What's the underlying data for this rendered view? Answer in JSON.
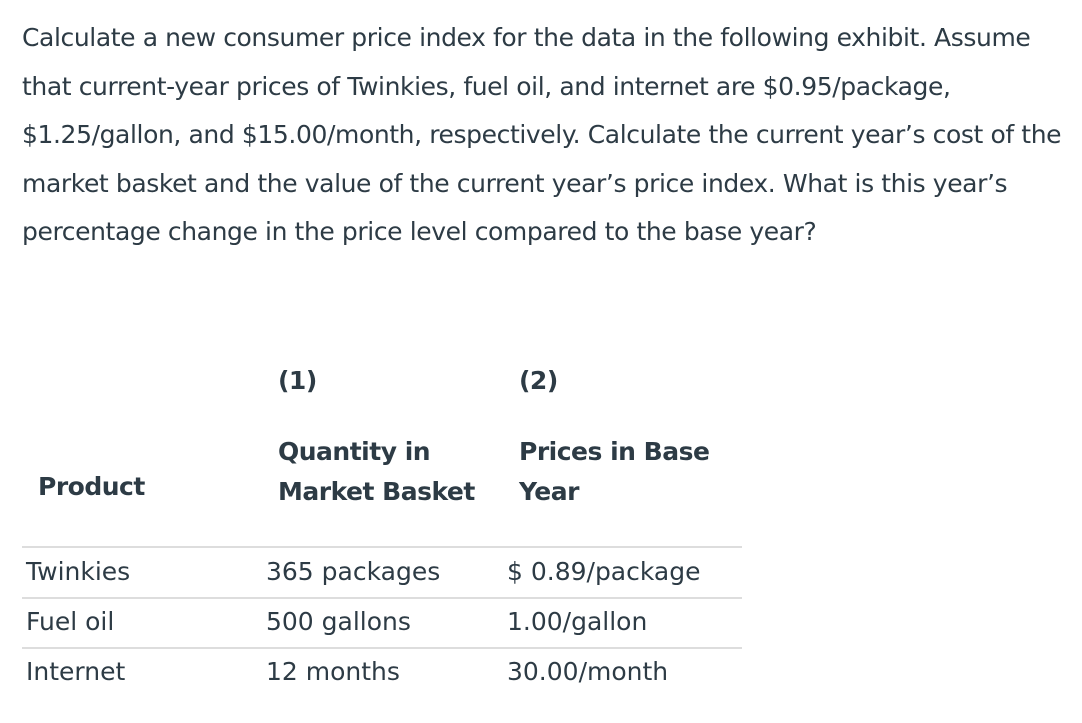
{
  "question": "Calculate a new consumer price index for the data in the following exhibit. Assume that current-year prices of Twinkies, fuel oil, and internet are $0.95/package, $1.25/gallon, and $15.00/month, respectively. Calculate the current year’s cost of the market basket and the value of the current year’s price index. What is this year’s percentage change in the price level compared to the base year?",
  "table": {
    "column_numbers": [
      "(1)",
      "(2)"
    ],
    "headers": [
      "Product",
      "Quantity in Market Basket",
      "Prices in Base Year"
    ],
    "rows": [
      [
        "Twinkies",
        "365 packages",
        "$ 0.89/package"
      ],
      [
        "Fuel oil",
        "500 gallons",
        "1.00/gallon"
      ],
      [
        "Internet",
        "12 months",
        "30.00/month"
      ]
    ]
  }
}
